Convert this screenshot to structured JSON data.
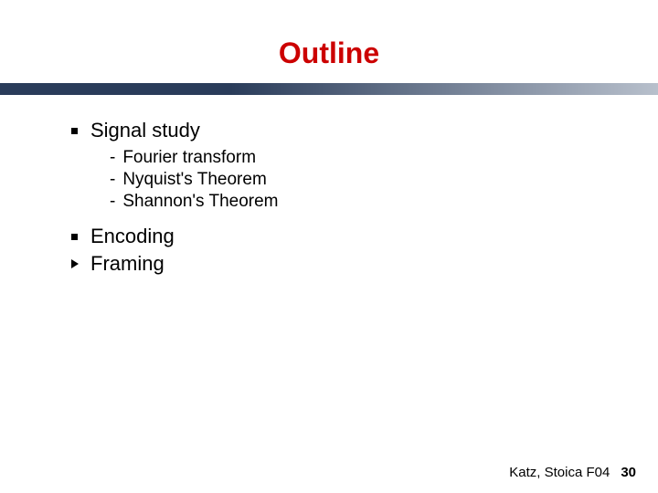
{
  "title": {
    "text": "Outline",
    "color": "#cc0000",
    "fontsize": 32
  },
  "divider": {
    "color_left": "#2a3c5a",
    "color_right": "#b8c0cc"
  },
  "body_fontsize": 22,
  "sub_fontsize": 19,
  "items": [
    {
      "bullet": "square",
      "text": "Signal study",
      "subitems": [
        "Fourier transform",
        "Nyquist's Theorem",
        "Shannon's Theorem"
      ]
    },
    {
      "bullet": "square",
      "text": "Encoding"
    },
    {
      "bullet": "arrow",
      "text": "Framing"
    }
  ],
  "footer": {
    "text": "Katz, Stoica F04",
    "page": "30",
    "fontsize": 15
  }
}
